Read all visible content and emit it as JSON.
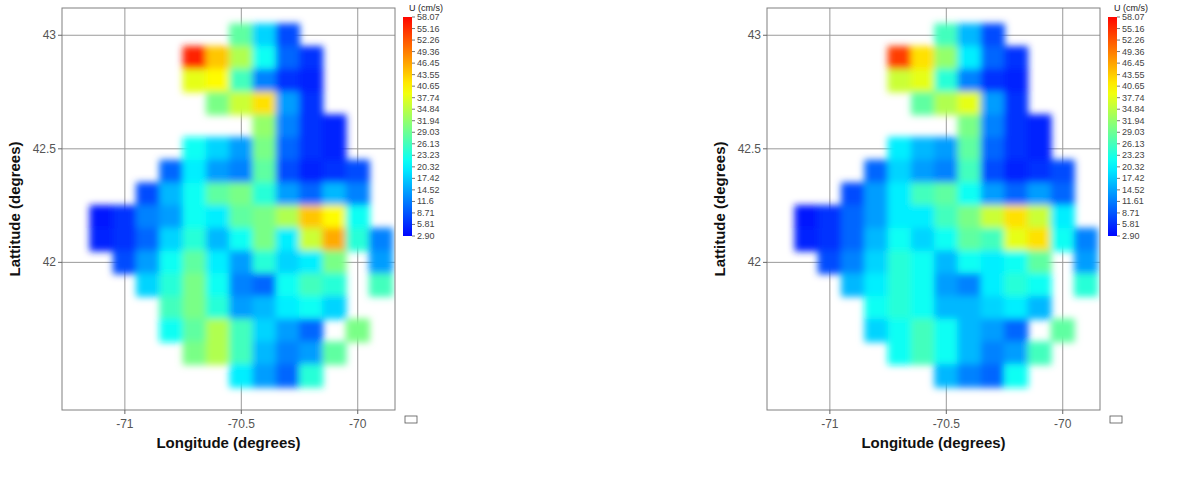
{
  "chart_data": [
    {
      "type": "heatmap",
      "x_label": "Longitude (degrees)",
      "y_label": "Lattitude (degrees)",
      "xlim": [
        -71.27,
        -69.84
      ],
      "ylim": [
        41.35,
        43.12
      ],
      "xticks": [
        -71,
        -70.5,
        -70
      ],
      "yticks": [
        42,
        42.5,
        43
      ],
      "grid": true,
      "x": [
        -71.1,
        -71.0,
        -70.9,
        -70.8,
        -70.7,
        -70.6,
        -70.5,
        -70.4,
        -70.3,
        -70.2,
        -70.1,
        -70.0,
        -69.9
      ],
      "y": [
        43.0,
        42.9,
        42.8,
        42.7,
        42.6,
        42.5,
        42.4,
        42.3,
        42.2,
        42.1,
        42.0,
        41.9,
        41.8,
        41.7,
        41.6,
        41.5
      ],
      "cells": [
        [
          null,
          null,
          null,
          null,
          null,
          null,
          28,
          18,
          8,
          null,
          null,
          null,
          null
        ],
        [
          null,
          null,
          null,
          null,
          56,
          44,
          34,
          22,
          10,
          6,
          null,
          null,
          null
        ],
        [
          null,
          null,
          null,
          null,
          38,
          40,
          26,
          12,
          6,
          5,
          null,
          null,
          null
        ],
        [
          null,
          null,
          null,
          null,
          null,
          30,
          36,
          42,
          14,
          6,
          null,
          null,
          null
        ],
        [
          null,
          null,
          null,
          null,
          null,
          null,
          null,
          32,
          12,
          6,
          5,
          null,
          null
        ],
        [
          null,
          null,
          null,
          null,
          22,
          18,
          14,
          30,
          10,
          6,
          5,
          null,
          null
        ],
        [
          null,
          null,
          null,
          10,
          20,
          14,
          12,
          28,
          8,
          5,
          6,
          8,
          null
        ],
        [
          null,
          null,
          8,
          16,
          22,
          28,
          30,
          24,
          14,
          10,
          16,
          12,
          null
        ],
        [
          4,
          6,
          12,
          14,
          22,
          20,
          28,
          30,
          34,
          44,
          40,
          22,
          null
        ],
        [
          5,
          6,
          10,
          18,
          24,
          16,
          22,
          30,
          20,
          36,
          46,
          24,
          12
        ],
        [
          null,
          8,
          14,
          22,
          28,
          20,
          14,
          24,
          18,
          20,
          30,
          null,
          14
        ],
        [
          null,
          null,
          18,
          24,
          30,
          22,
          12,
          10,
          22,
          26,
          24,
          null,
          26
        ],
        [
          null,
          null,
          null,
          26,
          30,
          24,
          14,
          16,
          20,
          22,
          18,
          null,
          null
        ],
        [
          null,
          null,
          null,
          22,
          28,
          34,
          26,
          18,
          14,
          10,
          null,
          30,
          null
        ],
        [
          null,
          null,
          null,
          null,
          30,
          34,
          26,
          16,
          12,
          14,
          28,
          null,
          null
        ],
        [
          null,
          null,
          null,
          null,
          null,
          null,
          20,
          14,
          10,
          24,
          null,
          null,
          null
        ]
      ],
      "colorbar_title": "U (cm/s)",
      "color_range": [
        2.9,
        58.07
      ],
      "color_ticks": [
        58.07,
        55.16,
        52.26,
        49.36,
        46.45,
        43.55,
        40.65,
        37.74,
        34.84,
        31.94,
        29.03,
        26.13,
        23.23,
        20.32,
        17.42,
        14.52,
        11.6,
        8.71,
        5.81,
        {
          "value": 2.9,
          "label": "2.90"
        }
      ]
    },
    {
      "type": "heatmap",
      "x_label": "Longitude (degrees)",
      "y_label": "Lattitude (degrees)",
      "xlim": [
        -71.27,
        -69.84
      ],
      "ylim": [
        41.35,
        43.12
      ],
      "xticks": [
        -71,
        -70.5,
        -70
      ],
      "yticks": [
        42,
        42.5,
        43
      ],
      "grid": true,
      "x": [
        -71.1,
        -71.0,
        -70.9,
        -70.8,
        -70.7,
        -70.6,
        -70.5,
        -70.4,
        -70.3,
        -70.2,
        -70.1,
        -70.0,
        -69.9
      ],
      "y": [
        43.0,
        42.9,
        42.8,
        42.7,
        42.6,
        42.5,
        42.4,
        42.3,
        42.2,
        42.1,
        42.0,
        41.9,
        41.8,
        41.7,
        41.6,
        41.5
      ],
      "cells": [
        [
          null,
          null,
          null,
          null,
          null,
          null,
          26,
          16,
          8,
          null,
          null,
          null,
          null
        ],
        [
          null,
          null,
          null,
          null,
          54,
          42,
          32,
          20,
          10,
          6,
          null,
          null,
          null
        ],
        [
          null,
          null,
          null,
          null,
          36,
          38,
          24,
          12,
          6,
          5,
          null,
          null,
          null
        ],
        [
          null,
          null,
          null,
          null,
          null,
          28,
          34,
          38,
          14,
          6,
          null,
          null,
          null
        ],
        [
          null,
          null,
          null,
          null,
          null,
          null,
          null,
          30,
          12,
          6,
          5,
          null,
          null
        ],
        [
          null,
          null,
          null,
          null,
          20,
          16,
          14,
          28,
          10,
          6,
          5,
          null,
          null
        ],
        [
          null,
          null,
          null,
          10,
          18,
          14,
          12,
          26,
          8,
          5,
          6,
          8,
          null
        ],
        [
          null,
          null,
          8,
          14,
          20,
          26,
          28,
          22,
          14,
          10,
          14,
          10,
          null
        ],
        [
          4,
          6,
          10,
          14,
          20,
          20,
          26,
          30,
          36,
          42,
          36,
          20,
          null
        ],
        [
          5,
          6,
          10,
          16,
          22,
          18,
          22,
          28,
          26,
          38,
          42,
          22,
          12
        ],
        [
          null,
          8,
          12,
          18,
          24,
          22,
          16,
          22,
          20,
          22,
          28,
          null,
          14
        ],
        [
          null,
          null,
          16,
          20,
          24,
          22,
          14,
          12,
          20,
          24,
          22,
          null,
          24
        ],
        [
          null,
          null,
          null,
          22,
          24,
          22,
          16,
          16,
          18,
          20,
          16,
          null,
          null
        ],
        [
          null,
          null,
          null,
          18,
          22,
          26,
          22,
          16,
          14,
          10,
          null,
          28,
          null
        ],
        [
          null,
          null,
          null,
          null,
          22,
          26,
          22,
          16,
          12,
          14,
          26,
          null,
          null
        ],
        [
          null,
          null,
          null,
          null,
          null,
          null,
          16,
          12,
          10,
          22,
          null,
          null,
          null
        ]
      ],
      "colorbar_title": "U (cm/s)",
      "color_range": [
        2.9,
        58.07
      ],
      "color_ticks": [
        58.07,
        55.16,
        52.26,
        49.36,
        46.45,
        43.55,
        40.65,
        37.74,
        34.84,
        31.94,
        29.03,
        26.13,
        23.23,
        20.32,
        17.42,
        14.52,
        11.61,
        8.71,
        5.81,
        {
          "value": 2.9,
          "label": "2.90"
        }
      ]
    }
  ]
}
